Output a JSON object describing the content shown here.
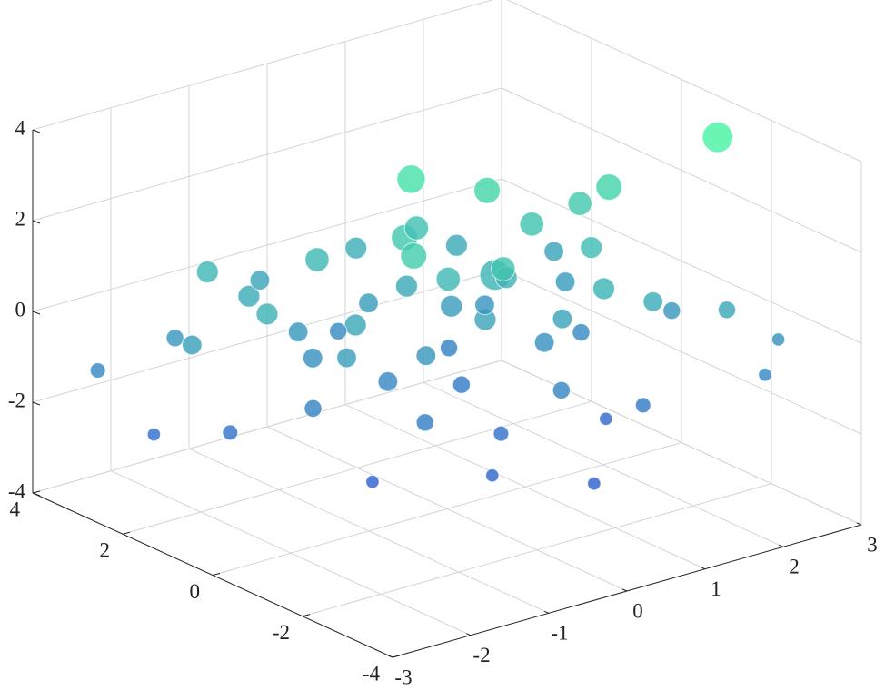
{
  "chart_data": {
    "type": "scatter3",
    "xlim": [
      -3,
      3
    ],
    "xticks": [
      -3,
      -2,
      -1,
      0,
      1,
      2,
      3
    ],
    "ylim": [
      -4,
      4
    ],
    "yticks": [
      -4,
      -2,
      0,
      2,
      4
    ],
    "zlim": [
      -4,
      4
    ],
    "zticks": [
      -4,
      -2,
      0,
      2,
      4
    ],
    "grid": true,
    "colormap": [
      "#2a40d8",
      "#4dfca0"
    ],
    "series": [
      {
        "x": [
          2.6,
          0,
          1.9,
          0.8,
          -0.2,
          0.5,
          0.3,
          -0.8,
          1.2,
          1.5,
          -1.5,
          -2.1,
          -2.8,
          -1.0,
          0.2,
          0.9,
          1.6,
          2.2,
          2.8,
          2.4,
          -0.5,
          0.4,
          -1.2,
          -0.3,
          0.6,
          1.3,
          0.0,
          -0.8,
          -1.6,
          -2.2,
          -2.6,
          1.0,
          1.8,
          0.7,
          -0.1,
          -1.9,
          -0.9,
          0.1,
          1.1,
          2.0,
          -0.4,
          0.5,
          1.4,
          -1.3,
          0.3,
          -0.7,
          1.6,
          0.9,
          -1.1,
          0.0,
          2.3,
          -2.4,
          -1.8,
          1.7,
          0.2,
          -0.6,
          -0.2,
          1.2,
          0.6,
          -1.4
        ],
        "y": [
          -1.5,
          0.8,
          -0.3,
          0.5,
          0.6,
          -0.2,
          1.2,
          1.5,
          0.2,
          -0.6,
          1.8,
          2.4,
          2.9,
          0.3,
          -0.5,
          -1.0,
          -1.8,
          -2.4,
          -2.5,
          -2.9,
          -0.4,
          0.6,
          0.9,
          1.9,
          -1.5,
          -2.1,
          -1.2,
          -0.9,
          0.2,
          1.0,
          2.0,
          0.9,
          0.5,
          -0.1,
          -0.2,
          0.7,
          2.6,
          2.2,
          1.7,
          1.1,
          -1.7,
          -2.4,
          -1.1,
          -0.6,
          0.2,
          0.1,
          -0.2,
          -0.6,
          1.4,
          0.9,
          -1.0,
          1.5,
          2.2,
          0.0,
          -0.9,
          -0.3,
          1.4,
          -1.4,
          1.0,
          -0.2
        ],
        "z": [
          3.6,
          2.9,
          2.3,
          2.4,
          1.8,
          1.0,
          1.5,
          1.2,
          1.6,
          1.3,
          0.6,
          -0.3,
          -0.9,
          0.4,
          0.3,
          0.2,
          0.6,
          0.4,
          -0.5,
          -0.9,
          -0.2,
          0.0,
          -0.5,
          -0.8,
          -1.0,
          -1.4,
          -1.8,
          -1.3,
          -1.1,
          -1.7,
          -2.0,
          -0.4,
          -0.1,
          0.8,
          1.2,
          0.9,
          0.3,
          0.7,
          0.5,
          0.2,
          -2.3,
          -2.6,
          -2.2,
          -2.5,
          -1.5,
          -0.9,
          -0.8,
          -0.5,
          -0.2,
          0.5,
          -0.3,
          0.1,
          1.1,
          1.9,
          1.6,
          2.0,
          0.0,
          0.9,
          -1.2,
          0.1
        ],
        "sizes": [
          14,
          13,
          12,
          12,
          12,
          14,
          11,
          11,
          11,
          10,
          10,
          8,
          7,
          10,
          10,
          9,
          9,
          8,
          6,
          6,
          9,
          10,
          9,
          8,
          8,
          7,
          7,
          8,
          8,
          7,
          6,
          9,
          9,
          10,
          11,
          10,
          9,
          10,
          10,
          9,
          6,
          6,
          6,
          6,
          8,
          9,
          8,
          9,
          9,
          10,
          8,
          9,
          10,
          11,
          11,
          12,
          9,
          10,
          8,
          9
        ]
      }
    ]
  }
}
